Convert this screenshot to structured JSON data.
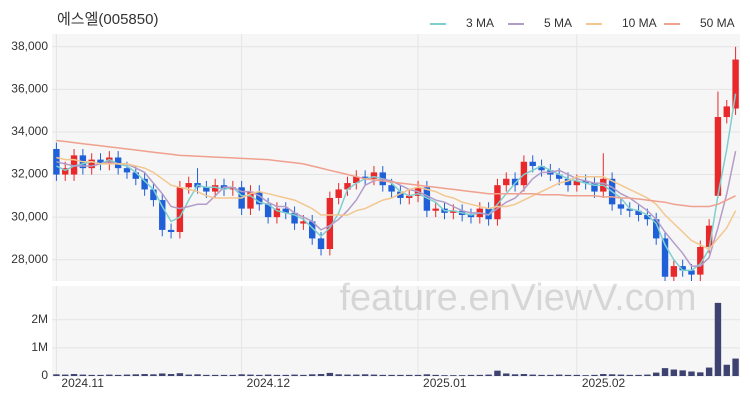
{
  "chart_data": [
    {
      "type": "candlestick",
      "title": "에스엘(005850)",
      "watermark": "feature.enViewV.com",
      "categories": [
        "2024.11",
        null,
        null,
        null,
        null,
        null,
        null,
        null,
        null,
        null,
        null,
        null,
        null,
        null,
        null,
        null,
        null,
        null,
        null,
        null,
        null,
        "2024.12",
        null,
        null,
        null,
        null,
        null,
        null,
        null,
        null,
        null,
        null,
        null,
        null,
        null,
        null,
        null,
        null,
        null,
        null,
        null,
        "2025.01",
        null,
        null,
        null,
        null,
        null,
        null,
        null,
        null,
        null,
        null,
        null,
        null,
        null,
        null,
        null,
        null,
        null,
        "2025.02",
        null,
        null,
        null,
        null,
        null,
        null,
        null,
        null,
        null,
        null,
        null,
        null,
        null,
        null,
        null,
        null,
        null,
        null
      ],
      "open": [
        33200,
        32000,
        32000,
        32900,
        32300,
        32700,
        32500,
        32800,
        32300,
        32100,
        31800,
        31300,
        30800,
        29400,
        29300,
        31400,
        31600,
        31400,
        31200,
        31500,
        31300,
        31400,
        30400,
        31200,
        30600,
        30000,
        30400,
        30200,
        29700,
        29800,
        29000,
        28500,
        30900,
        31300,
        31600,
        31900,
        31800,
        32100,
        31500,
        31200,
        30900,
        31000,
        31400,
        30300,
        30400,
        30200,
        30300,
        30100,
        30000,
        30400,
        29900,
        31500,
        31800,
        31500,
        32600,
        32400,
        32200,
        32000,
        31800,
        31500,
        31700,
        31600,
        31200,
        31800,
        30600,
        30400,
        30300,
        30100,
        29900,
        29000,
        27200,
        27700,
        27500,
        27300,
        28600,
        31000,
        34700,
        35100
      ],
      "high": [
        33500,
        32600,
        33200,
        33200,
        33000,
        33000,
        33100,
        33100,
        32600,
        32400,
        32100,
        31600,
        31100,
        29700,
        31700,
        31900,
        32300,
        31700,
        31800,
        31800,
        31700,
        31700,
        31500,
        31500,
        30900,
        30700,
        30700,
        30500,
        30100,
        30100,
        29300,
        31200,
        31600,
        31900,
        32200,
        32200,
        32400,
        32400,
        31800,
        31500,
        31300,
        31700,
        31700,
        30700,
        30700,
        30600,
        30600,
        30400,
        30700,
        30700,
        31800,
        32100,
        32100,
        32900,
        32900,
        32700,
        32500,
        32300,
        32100,
        32000,
        32000,
        31900,
        33000,
        32100,
        30900,
        30700,
        30600,
        30400,
        30200,
        29300,
        28000,
        28000,
        27800,
        28900,
        29900,
        35900,
        35500,
        38000
      ],
      "low": [
        31700,
        31700,
        31700,
        32000,
        32000,
        32200,
        32200,
        32000,
        31800,
        31500,
        31000,
        30500,
        29100,
        29000,
        29000,
        31100,
        31100,
        30900,
        30900,
        31000,
        31000,
        30100,
        30100,
        30300,
        29700,
        29700,
        29900,
        29400,
        29400,
        28700,
        28200,
        28200,
        30600,
        31000,
        31300,
        31500,
        31500,
        31200,
        30900,
        30600,
        30600,
        30700,
        30000,
        30000,
        29900,
        29900,
        29800,
        29700,
        29700,
        29600,
        29600,
        31200,
        31200,
        31200,
        32100,
        31900,
        31700,
        31500,
        31200,
        31200,
        31300,
        30900,
        30900,
        30300,
        30100,
        30000,
        29800,
        29600,
        28700,
        27000,
        27000,
        27200,
        27000,
        27000,
        28300,
        30900,
        34400,
        34800
      ],
      "close": [
        32000,
        32300,
        32900,
        32300,
        32700,
        32500,
        32800,
        32300,
        32100,
        31800,
        31300,
        30800,
        29400,
        29300,
        31400,
        31600,
        31400,
        31200,
        31500,
        31300,
        31400,
        30400,
        31200,
        30600,
        30000,
        30400,
        30200,
        29700,
        29800,
        29000,
        28500,
        30900,
        31300,
        31600,
        31900,
        31800,
        32100,
        31500,
        31200,
        30900,
        31000,
        31400,
        30300,
        30400,
        30200,
        30300,
        30100,
        30000,
        30400,
        29900,
        31500,
        31800,
        31500,
        32600,
        32400,
        32200,
        32000,
        31800,
        31500,
        31700,
        31600,
        31200,
        31800,
        30600,
        30400,
        30300,
        30100,
        29900,
        29000,
        27200,
        27700,
        27500,
        27300,
        28600,
        29600,
        34700,
        35200,
        37400
      ],
      "up_color": "#e8282b",
      "down_color": "#1f5fd8",
      "series": [
        {
          "name": "3 MA",
          "color": "#7fcfcf",
          "values": [
            32400,
            32200,
            32400,
            32500,
            32600,
            32500,
            32700,
            32500,
            32400,
            32100,
            31700,
            31300,
            30500,
            29800,
            30000,
            30800,
            31500,
            31400,
            31400,
            31300,
            31400,
            31000,
            31000,
            30700,
            30600,
            30300,
            30200,
            30100,
            29900,
            29500,
            29100,
            29500,
            30200,
            31300,
            31600,
            31800,
            31900,
            31800,
            31600,
            31200,
            31000,
            31100,
            30900,
            30700,
            30300,
            30300,
            30200,
            30100,
            30200,
            30100,
            30600,
            31100,
            31600,
            32000,
            32200,
            32400,
            32200,
            32000,
            31800,
            31700,
            31600,
            31500,
            31500,
            31200,
            30900,
            30400,
            30300,
            30100,
            29700,
            28700,
            28000,
            27500,
            27500,
            27800,
            28500,
            31000,
            33200,
            35800
          ]
        },
        {
          "name": "5 MA",
          "color": "#b49cc9",
          "values": [
            32600,
            32500,
            32400,
            32400,
            32400,
            32500,
            32600,
            32500,
            32500,
            32300,
            32100,
            31600,
            31100,
            30500,
            30400,
            30500,
            30600,
            30600,
            31000,
            31400,
            31400,
            31200,
            31200,
            31000,
            30700,
            30500,
            30500,
            30200,
            30000,
            29800,
            29400,
            29600,
            29900,
            30300,
            30800,
            31500,
            31700,
            31800,
            31700,
            31500,
            31300,
            31200,
            31000,
            30800,
            30700,
            30500,
            30300,
            30200,
            30200,
            30100,
            30400,
            30700,
            30900,
            31300,
            31800,
            32100,
            32100,
            32200,
            32000,
            31800,
            31700,
            31600,
            31600,
            31400,
            31100,
            30900,
            30600,
            30300,
            29900,
            29300,
            28800,
            28300,
            27700,
            27700,
            28100,
            29500,
            31100,
            33100
          ]
        },
        {
          "name": "10 MA",
          "color": "#f3c790",
          "values": [
            32800,
            32700,
            32700,
            32600,
            32600,
            32500,
            32500,
            32500,
            32500,
            32400,
            32300,
            32100,
            31800,
            31500,
            31400,
            31300,
            31200,
            31000,
            30900,
            30900,
            30900,
            30900,
            31100,
            31200,
            31100,
            31000,
            30900,
            30800,
            30600,
            30400,
            30100,
            30100,
            30100,
            30100,
            30300,
            30400,
            30600,
            30800,
            30900,
            31100,
            31300,
            31400,
            31300,
            31200,
            31000,
            30900,
            30700,
            30600,
            30500,
            30400,
            30500,
            30500,
            30600,
            30800,
            31000,
            31200,
            31400,
            31600,
            31700,
            31900,
            31900,
            31900,
            31900,
            31700,
            31500,
            31300,
            31100,
            30900,
            30600,
            30100,
            29700,
            29300,
            28900,
            28700,
            28500,
            29000,
            29500,
            30300
          ]
        },
        {
          "name": "50 MA",
          "color": "#f0a08e",
          "values": [
            33600,
            33550,
            33500,
            33450,
            33400,
            33350,
            33300,
            33250,
            33200,
            33150,
            33100,
            33050,
            33000,
            32950,
            32900,
            32880,
            32860,
            32840,
            32820,
            32800,
            32780,
            32760,
            32740,
            32720,
            32700,
            32650,
            32600,
            32550,
            32500,
            32400,
            32300,
            32200,
            32100,
            32000,
            31900,
            31800,
            31750,
            31700,
            31650,
            31600,
            31550,
            31500,
            31450,
            31400,
            31350,
            31300,
            31250,
            31200,
            31150,
            31100,
            31100,
            31100,
            31100,
            31100,
            31100,
            31050,
            31050,
            31050,
            31000,
            31000,
            31000,
            31000,
            30950,
            30950,
            30900,
            30900,
            30850,
            30800,
            30750,
            30700,
            30600,
            30550,
            30500,
            30500,
            30500,
            30600,
            30800,
            31000
          ]
        }
      ],
      "ylim": [
        27000,
        38600
      ],
      "yticks": [
        {
          "value": 28000,
          "label": "28,000"
        },
        {
          "value": 30000,
          "label": "30,000"
        },
        {
          "value": 32000,
          "label": "32,000"
        },
        {
          "value": 34000,
          "label": "34,000"
        },
        {
          "value": 36000,
          "label": "36,000"
        },
        {
          "value": 38000,
          "label": "38,000"
        }
      ],
      "grid": true,
      "legend": "top-right"
    },
    {
      "type": "bar",
      "color": "#3d4270",
      "values": [
        60000,
        50000,
        70000,
        50000,
        40000,
        40000,
        50000,
        40000,
        50000,
        60000,
        70000,
        60000,
        90000,
        70000,
        100000,
        50000,
        60000,
        40000,
        40000,
        40000,
        40000,
        60000,
        50000,
        40000,
        50000,
        40000,
        40000,
        50000,
        40000,
        60000,
        70000,
        110000,
        60000,
        50000,
        50000,
        60000,
        50000,
        40000,
        40000,
        40000,
        40000,
        40000,
        60000,
        40000,
        30000,
        30000,
        30000,
        40000,
        40000,
        50000,
        190000,
        90000,
        60000,
        70000,
        50000,
        40000,
        40000,
        50000,
        40000,
        40000,
        30000,
        40000,
        70000,
        60000,
        50000,
        40000,
        40000,
        50000,
        120000,
        280000,
        230000,
        200000,
        160000,
        130000,
        300000,
        2600000,
        400000,
        620000
      ],
      "ylim": [
        0,
        3200000
      ],
      "yticks": [
        0,
        {
          "value": 1000000,
          "label": "1M"
        },
        {
          "value": 2000000,
          "label": "2M"
        }
      ],
      "grid": true
    }
  ]
}
